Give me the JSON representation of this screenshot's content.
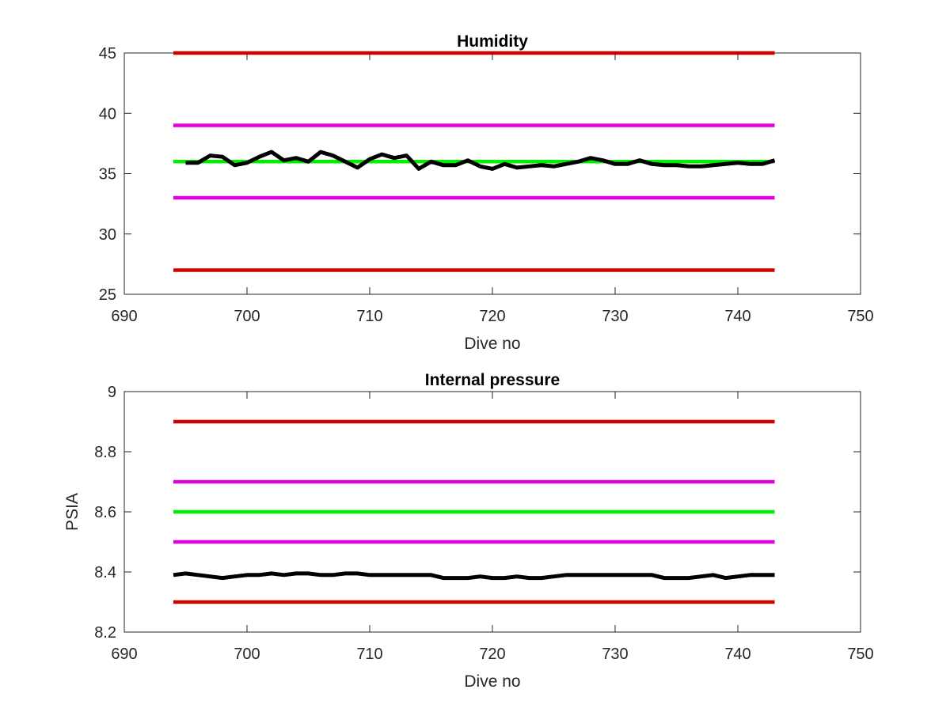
{
  "chart_data": [
    {
      "type": "line",
      "title": "Humidity",
      "xlabel": "Dive no",
      "ylabel": "",
      "xlim": [
        690,
        750
      ],
      "ylim": [
        25,
        45
      ],
      "xticks": [
        690,
        700,
        710,
        720,
        730,
        740,
        750
      ],
      "yticks": [
        25,
        30,
        35,
        40,
        45
      ],
      "grid": false,
      "series": [
        {
          "color": "#d40000",
          "style": "hline",
          "x": [
            694,
            743
          ],
          "values": [
            45,
            45
          ]
        },
        {
          "color": "#e000e0",
          "style": "hline",
          "x": [
            694,
            743
          ],
          "values": [
            39,
            39
          ]
        },
        {
          "color": "#00ee00",
          "style": "hline",
          "x": [
            694,
            743
          ],
          "values": [
            36,
            36
          ]
        },
        {
          "color": "#e000e0",
          "style": "hline",
          "x": [
            694,
            743
          ],
          "values": [
            33,
            33
          ]
        },
        {
          "color": "#d40000",
          "style": "hline",
          "x": [
            694,
            743
          ],
          "values": [
            27,
            27
          ]
        },
        {
          "color": "#000000",
          "style": "data",
          "x": [
            695,
            696,
            697,
            698,
            699,
            700,
            701,
            702,
            703,
            704,
            705,
            706,
            707,
            708,
            709,
            710,
            711,
            712,
            713,
            714,
            715,
            716,
            717,
            718,
            719,
            720,
            721,
            722,
            723,
            724,
            725,
            726,
            727,
            728,
            729,
            730,
            731,
            732,
            733,
            734,
            735,
            736,
            737,
            738,
            739,
            740,
            741,
            742,
            743
          ],
          "values": [
            35.9,
            35.9,
            36.5,
            36.4,
            35.7,
            35.9,
            36.4,
            36.8,
            36.1,
            36.3,
            36.0,
            36.8,
            36.5,
            36.0,
            35.5,
            36.2,
            36.6,
            36.3,
            36.5,
            35.4,
            36.0,
            35.7,
            35.7,
            36.1,
            35.6,
            35.4,
            35.8,
            35.5,
            35.6,
            35.7,
            35.6,
            35.8,
            36.0,
            36.3,
            36.1,
            35.8,
            35.8,
            36.1,
            35.8,
            35.7,
            35.7,
            35.6,
            35.6,
            35.7,
            35.8,
            35.9,
            35.8,
            35.8,
            36.1
          ]
        }
      ]
    },
    {
      "type": "line",
      "title": "Internal pressure",
      "xlabel": "Dive no",
      "ylabel": "PSIA",
      "xlim": [
        690,
        750
      ],
      "ylim": [
        8.2,
        9.0
      ],
      "xticks": [
        690,
        700,
        710,
        720,
        730,
        740,
        750
      ],
      "yticks": [
        8.2,
        8.4,
        8.6,
        8.8,
        9.0
      ],
      "ytick_labels": [
        "8.2",
        "8.4",
        "8.6",
        "8.8",
        "9"
      ],
      "grid": false,
      "series": [
        {
          "color": "#d40000",
          "style": "hline",
          "x": [
            694,
            743
          ],
          "values": [
            8.9,
            8.9
          ]
        },
        {
          "color": "#e000e0",
          "style": "hline",
          "x": [
            694,
            743
          ],
          "values": [
            8.7,
            8.7
          ]
        },
        {
          "color": "#00ee00",
          "style": "hline",
          "x": [
            694,
            743
          ],
          "values": [
            8.6,
            8.6
          ]
        },
        {
          "color": "#e000e0",
          "style": "hline",
          "x": [
            694,
            743
          ],
          "values": [
            8.5,
            8.5
          ]
        },
        {
          "color": "#d40000",
          "style": "hline",
          "x": [
            694,
            743
          ],
          "values": [
            8.3,
            8.3
          ]
        },
        {
          "color": "#000000",
          "style": "data",
          "x": [
            694,
            695,
            696,
            697,
            698,
            699,
            700,
            701,
            702,
            703,
            704,
            705,
            706,
            707,
            708,
            709,
            710,
            711,
            712,
            713,
            714,
            715,
            716,
            717,
            718,
            719,
            720,
            721,
            722,
            723,
            724,
            725,
            726,
            727,
            728,
            729,
            730,
            731,
            732,
            733,
            734,
            735,
            736,
            737,
            738,
            739,
            740,
            741,
            742,
            743
          ],
          "values": [
            8.39,
            8.395,
            8.39,
            8.385,
            8.38,
            8.385,
            8.39,
            8.39,
            8.395,
            8.39,
            8.395,
            8.395,
            8.39,
            8.39,
            8.395,
            8.395,
            8.39,
            8.39,
            8.39,
            8.39,
            8.39,
            8.39,
            8.38,
            8.38,
            8.38,
            8.385,
            8.38,
            8.38,
            8.385,
            8.38,
            8.38,
            8.385,
            8.39,
            8.39,
            8.39,
            8.39,
            8.39,
            8.39,
            8.39,
            8.39,
            8.38,
            8.38,
            8.38,
            8.385,
            8.39,
            8.38,
            8.385,
            8.39,
            8.39,
            8.39
          ]
        }
      ]
    }
  ]
}
